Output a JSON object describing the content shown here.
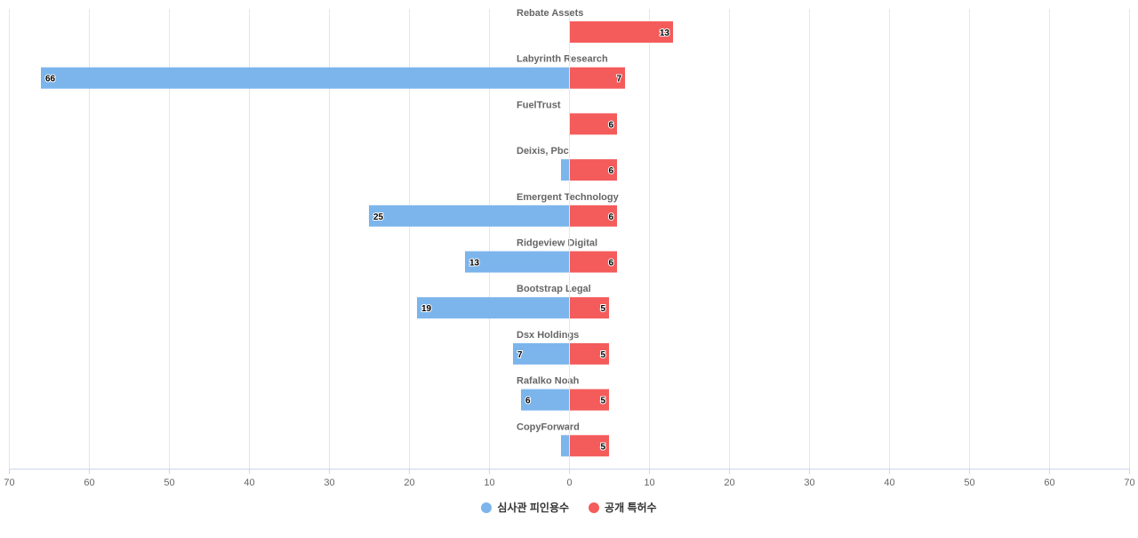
{
  "chart_data": {
    "type": "bar",
    "orientation": "horizontal-diverging",
    "categories": [
      "Rebate Assets",
      "Labyrinth Research",
      "FuelTrust",
      "Deixis, Pbc",
      "Emergent Technology",
      "Ridgeview Digital",
      "Bootstrap Legal",
      "Dsx Holdings",
      "Rafalko Noah",
      "CopyForward"
    ],
    "series": [
      {
        "name": "심사관 피인용수",
        "values": [
          0,
          66,
          0,
          1,
          25,
          13,
          19,
          7,
          6,
          1
        ],
        "color": "#7cb5ec",
        "direction": "left"
      },
      {
        "name": "공개 특허수",
        "values": [
          13,
          7,
          6,
          6,
          6,
          6,
          5,
          5,
          5,
          5
        ],
        "color": "#f45b5b",
        "direction": "right"
      }
    ],
    "xlim": [
      -70,
      70
    ],
    "x_tick_values": [
      -70,
      -60,
      -50,
      -40,
      -30,
      -20,
      -10,
      0,
      10,
      20,
      30,
      40,
      50,
      60,
      70
    ],
    "x_tick_labels": [
      "70",
      "60",
      "50",
      "40",
      "30",
      "20",
      "10",
      "0",
      "10",
      "20",
      "30",
      "40",
      "50",
      "60",
      "70"
    ],
    "grid": true,
    "legend_position": "bottom-center"
  }
}
